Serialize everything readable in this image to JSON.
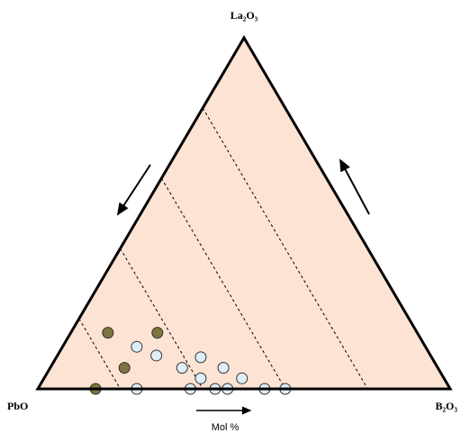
{
  "chart_data": {
    "type": "ternary",
    "vertices": [
      "PbO",
      "B₂O₃",
      "La₂O₃"
    ],
    "axis_label": "Mol %",
    "guides": [
      80,
      60,
      40,
      20
    ],
    "series": [
      {
        "color": "#7d7440",
        "values": [
          [
            9,
            16
          ],
          [
            21,
            16
          ],
          [
            18,
            6
          ],
          [
            14,
            0
          ]
        ]
      },
      {
        "color": "#deeef7",
        "values": [
          [
            18,
            12
          ],
          [
            24,
            9.5
          ],
          [
            35,
            9
          ],
          [
            42,
            6
          ],
          [
            32,
            6
          ],
          [
            38,
            3
          ],
          [
            48,
            3
          ],
          [
            24,
            0
          ],
          [
            37,
            0
          ],
          [
            43,
            0
          ],
          [
            46,
            0
          ],
          [
            55,
            0
          ],
          [
            60,
            0
          ]
        ]
      }
    ]
  }
}
